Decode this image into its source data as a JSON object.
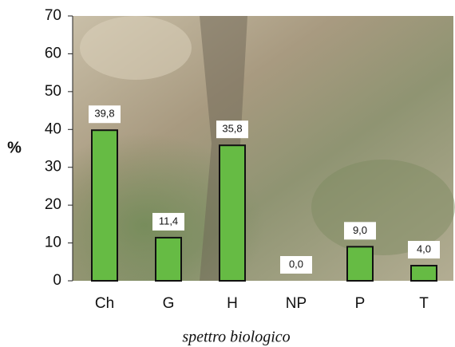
{
  "chart_data": {
    "type": "bar",
    "categories": [
      "Ch",
      "G",
      "H",
      "NP",
      "P",
      "T"
    ],
    "values": [
      39.8,
      11.4,
      35.8,
      0.0,
      9.0,
      4.0
    ],
    "value_labels": [
      "39,8",
      "11,4",
      "35,8",
      "0,0",
      "9,0",
      "4,0"
    ],
    "color": "#66bb44",
    "ylim": [
      0,
      70
    ],
    "yticks": [
      0,
      10,
      20,
      30,
      40,
      50,
      60,
      70
    ],
    "y_label": "%",
    "x_label": "spettro biologico"
  }
}
